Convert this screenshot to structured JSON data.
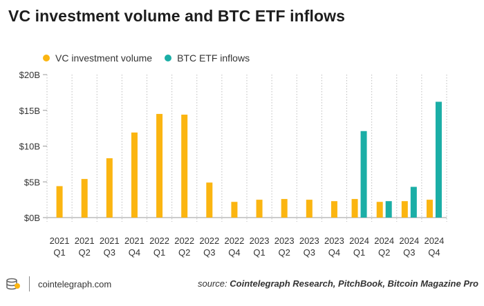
{
  "header": {
    "title": "VC investment volume and BTC ETF inflows"
  },
  "colors": {
    "vc": "#FBB511",
    "etf": "#1BAEA6",
    "grid": "#bdbdbd",
    "text": "#333333"
  },
  "chart_data": {
    "type": "bar",
    "title": "VC investment volume and BTC ETF inflows",
    "xlabel": "",
    "ylabel": "",
    "ylim": [
      0,
      20
    ],
    "y_ticks": [
      0,
      5,
      10,
      15,
      20
    ],
    "y_tick_labels": [
      "$0B",
      "$5B",
      "$10B",
      "$15B",
      "$20B"
    ],
    "categories": [
      {
        "year": "2021",
        "q": "Q1"
      },
      {
        "year": "2021",
        "q": "Q2"
      },
      {
        "year": "2021",
        "q": "Q3"
      },
      {
        "year": "2021",
        "q": "Q4"
      },
      {
        "year": "2022",
        "q": "Q1"
      },
      {
        "year": "2022",
        "q": "Q2"
      },
      {
        "year": "2022",
        "q": "Q3"
      },
      {
        "year": "2022",
        "q": "Q4"
      },
      {
        "year": "2023",
        "q": "Q1"
      },
      {
        "year": "2023",
        "q": "Q2"
      },
      {
        "year": "2023",
        "q": "Q3"
      },
      {
        "year": "2023",
        "q": "Q4"
      },
      {
        "year": "2024",
        "q": "Q1"
      },
      {
        "year": "2024",
        "q": "Q2"
      },
      {
        "year": "2024",
        "q": "Q3"
      },
      {
        "year": "2024",
        "q": "Q4"
      }
    ],
    "series": [
      {
        "name": "VC investment volume",
        "color": "#FBB511",
        "values": [
          4.4,
          5.4,
          8.3,
          11.9,
          14.5,
          14.4,
          4.9,
          2.2,
          2.5,
          2.6,
          2.5,
          2.3,
          2.6,
          2.2,
          2.3,
          2.5
        ]
      },
      {
        "name": "BTC ETF inflows",
        "color": "#1BAEA6",
        "values": [
          null,
          null,
          null,
          null,
          null,
          null,
          null,
          null,
          null,
          null,
          null,
          null,
          12.1,
          2.3,
          4.3,
          16.2
        ]
      }
    ],
    "legend_position": "top-left",
    "grid": "vertical"
  },
  "footer": {
    "site": "cointelegraph.com",
    "source_prefix": "source:",
    "source_text": "Cointelegraph Research, PitchBook, Bitcoin Magazine Pro"
  }
}
